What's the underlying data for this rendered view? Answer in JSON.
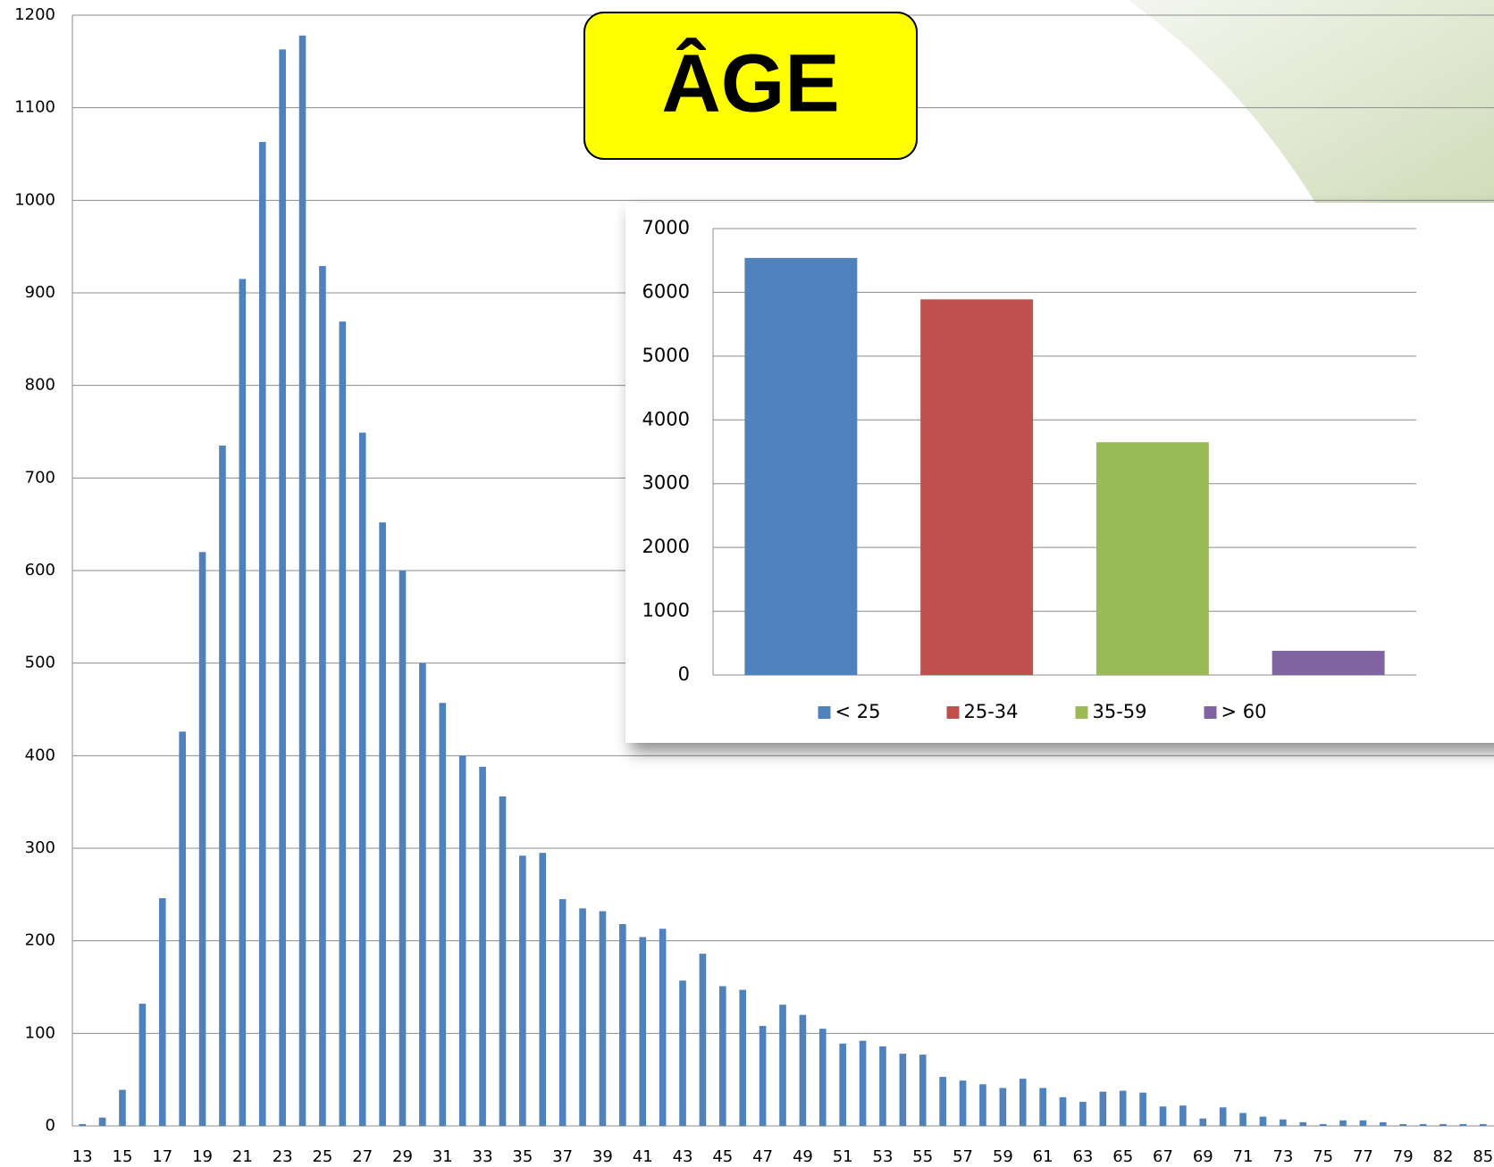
{
  "chart_data": [
    {
      "type": "bar",
      "title": "ÂGE",
      "categories": [
        "13",
        null,
        "15",
        null,
        "17",
        null,
        "19",
        null,
        "21",
        null,
        "23",
        null,
        "25",
        null,
        "27",
        null,
        "29",
        null,
        "31",
        null,
        "33",
        null,
        "35",
        null,
        "37",
        null,
        "39",
        null,
        "41",
        null,
        "43",
        null,
        "45",
        null,
        "47",
        null,
        "49",
        null,
        "51",
        null,
        "53",
        null,
        "55",
        null,
        "57",
        null,
        "59",
        null,
        "61",
        null,
        "63",
        null,
        "65",
        null,
        "67",
        null,
        "69",
        null,
        "71",
        null,
        "73",
        null,
        "75",
        null,
        "77",
        null,
        "79",
        null,
        "82",
        null,
        "85"
      ],
      "values": [
        2,
        9,
        39,
        132,
        246,
        426,
        620,
        735,
        915,
        1063,
        1163,
        1178,
        929,
        869,
        749,
        652,
        600,
        500,
        457,
        400,
        388,
        356,
        292,
        295,
        245,
        235,
        232,
        218,
        204,
        213,
        157,
        186,
        151,
        147,
        108,
        131,
        120,
        105,
        89,
        92,
        86,
        78,
        77,
        53,
        49,
        45,
        41,
        51,
        41,
        31,
        26,
        37,
        38,
        36,
        21,
        22,
        8,
        20,
        14,
        10,
        7,
        4,
        2,
        6,
        6,
        4,
        2,
        2,
        2,
        2,
        2
      ],
      "color": "#4f81bd",
      "ylim": [
        0,
        1200
      ],
      "yticks": [
        0,
        100,
        200,
        300,
        400,
        500,
        600,
        700,
        800,
        900,
        1000,
        1100,
        1200
      ],
      "grid": true
    },
    {
      "type": "bar",
      "categories": [
        "< 25",
        "25-34",
        "35-59",
        "> 60"
      ],
      "values": [
        6540,
        5890,
        3650,
        380
      ],
      "colors": [
        "#4f81bd",
        "#c0504d",
        "#9bbb59",
        "#8064a2"
      ],
      "ylim": [
        0,
        7000
      ],
      "yticks": [
        0,
        1000,
        2000,
        3000,
        4000,
        5000,
        6000,
        7000
      ],
      "grid": true,
      "legend": "bottom"
    }
  ]
}
